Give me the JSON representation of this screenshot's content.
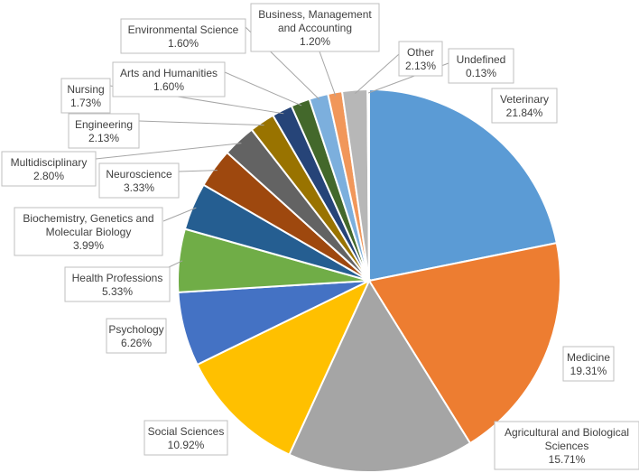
{
  "chart_data": {
    "type": "pie",
    "start_angle_deg": 0,
    "direction": "clockwise",
    "title": "",
    "legend": "none",
    "slices": [
      {
        "name": "Veterinary",
        "label_lines": [
          "Veterinary"
        ],
        "value": 21.84,
        "value_label": "21.84%",
        "color": "#5B9BD5"
      },
      {
        "name": "Medicine",
        "label_lines": [
          "Medicine"
        ],
        "value": 19.31,
        "value_label": "19.31%",
        "color": "#ED7D31"
      },
      {
        "name": "Agricultural and Biological Sciences",
        "label_lines": [
          "Agricultural and Biological",
          "Sciences"
        ],
        "value": 15.71,
        "value_label": "15.71%",
        "color": "#A5A5A5"
      },
      {
        "name": "Social Sciences",
        "label_lines": [
          "Social Sciences"
        ],
        "value": 10.92,
        "value_label": "10.92%",
        "color": "#FFC000"
      },
      {
        "name": "Psychology",
        "label_lines": [
          "Psychology"
        ],
        "value": 6.26,
        "value_label": "6.26%",
        "color": "#4472C4"
      },
      {
        "name": "Health Professions",
        "label_lines": [
          "Health Professions"
        ],
        "value": 5.33,
        "value_label": "5.33%",
        "color": "#70AD47"
      },
      {
        "name": "Biochemistry, Genetics and Molecular Biology",
        "label_lines": [
          "Biochemistry, Genetics and",
          "Molecular Biology"
        ],
        "value": 3.99,
        "value_label": "3.99%",
        "color": "#255E91"
      },
      {
        "name": "Neuroscience",
        "label_lines": [
          "Neuroscience"
        ],
        "value": 3.33,
        "value_label": "3.33%",
        "color": "#9E480E"
      },
      {
        "name": "Multidisciplinary",
        "label_lines": [
          "Multidisciplinary"
        ],
        "value": 2.8,
        "value_label": "2.80%",
        "color": "#636363"
      },
      {
        "name": "Engineering",
        "label_lines": [
          "Engineering"
        ],
        "value": 2.13,
        "value_label": "2.13%",
        "color": "#997300"
      },
      {
        "name": "Nursing",
        "label_lines": [
          "Nursing"
        ],
        "value": 1.73,
        "value_label": "1.73%",
        "color": "#264478"
      },
      {
        "name": "Arts and Humanities",
        "label_lines": [
          "Arts and Humanities"
        ],
        "value": 1.6,
        "value_label": "1.60%",
        "color": "#43682B"
      },
      {
        "name": "Environmental Science",
        "label_lines": [
          "Environmental Science"
        ],
        "value": 1.6,
        "value_label": "1.60%",
        "color": "#7CAFDD"
      },
      {
        "name": "Business, Management and Accounting",
        "label_lines": [
          "Business, Management",
          "and Accounting"
        ],
        "value": 1.2,
        "value_label": "1.20%",
        "color": "#F1975A"
      },
      {
        "name": "Other",
        "label_lines": [
          "Other"
        ],
        "value": 2.13,
        "value_label": "2.13%",
        "color": "#B7B7B7"
      },
      {
        "name": "Undefined",
        "label_lines": [
          "Undefined"
        ],
        "value": 0.13,
        "value_label": "0.13%",
        "color": "#FFCD33"
      }
    ]
  }
}
